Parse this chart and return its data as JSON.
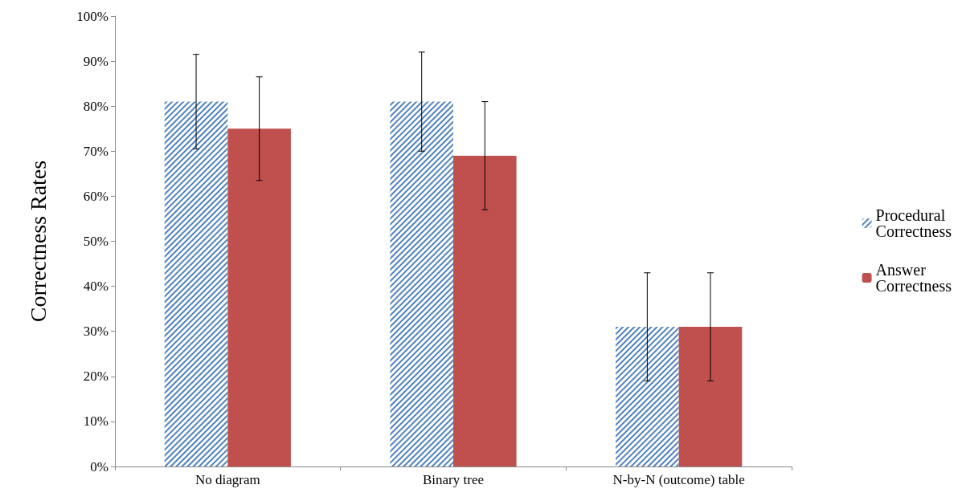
{
  "chart_data": {
    "type": "bar",
    "ylabel": "Correctness Rates",
    "categories": [
      "No diagram",
      "Binary tree",
      "N-by-N (outcome) table"
    ],
    "series": [
      {
        "name": "Procedural Correctness",
        "color": "#4f81bd",
        "values": [
          81,
          81,
          31
        ],
        "errors": [
          10.5,
          11,
          12
        ]
      },
      {
        "name": "Answer Correctness",
        "color": "#c0504d",
        "values": [
          75,
          69,
          31
        ],
        "errors": [
          11.5,
          12,
          12
        ]
      }
    ],
    "ylim": [
      0,
      100
    ],
    "yticks": [
      {
        "value": 0,
        "label": "0%"
      },
      {
        "value": 10,
        "label": "10%"
      },
      {
        "value": 20,
        "label": "20%"
      },
      {
        "value": 30,
        "label": "30%"
      },
      {
        "value": 40,
        "label": "40%"
      },
      {
        "value": 50,
        "label": "50%"
      },
      {
        "value": 60,
        "label": "60%"
      },
      {
        "value": 70,
        "label": "70%"
      },
      {
        "value": 80,
        "label": "80%"
      },
      {
        "value": 90,
        "label": "90%"
      },
      {
        "value": 100,
        "label": "100%"
      }
    ],
    "grid": false,
    "legend": "right"
  }
}
